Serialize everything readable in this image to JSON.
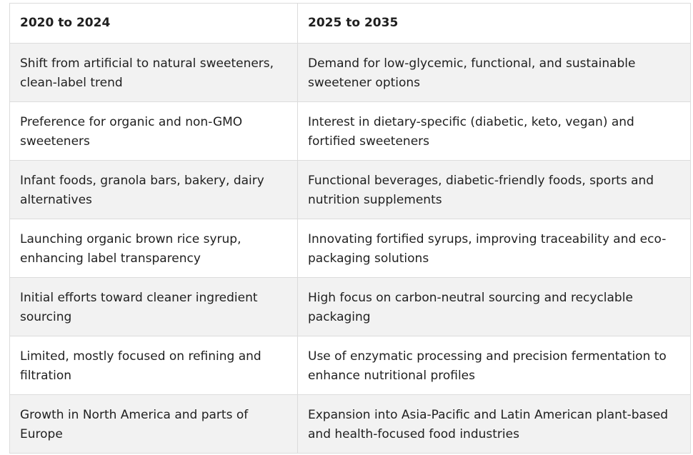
{
  "table": {
    "headers": [
      "2020 to 2024",
      "2025 to 2035"
    ],
    "rows": [
      [
        "Shift from artificial to natural sweeteners, clean-label trend",
        "Demand for low-glycemic, functional, and sustainable sweetener options"
      ],
      [
        "Preference for organic and non-GMO sweeteners",
        "Interest in dietary-specific (diabetic, keto, vegan) and fortified sweeteners"
      ],
      [
        "Infant foods, granola bars, bakery, dairy alternatives",
        "Functional beverages, diabetic-friendly foods, sports and nutrition supplements"
      ],
      [
        "Launching organic brown rice syrup, enhancing label transparency",
        "Innovating fortified syrups, improving traceability and eco-packaging solutions"
      ],
      [
        "Initial efforts toward cleaner ingredient sourcing",
        "High focus on carbon-neutral sourcing and recyclable packaging"
      ],
      [
        "Limited, mostly focused on refining and filtration",
        "Use of enzymatic processing and precision fermentation to enhance nutritional profiles"
      ],
      [
        "Growth in North America and parts of Europe",
        "Expansion into Asia-Pacific and Latin American plant-based and health-focused food industries"
      ]
    ]
  }
}
